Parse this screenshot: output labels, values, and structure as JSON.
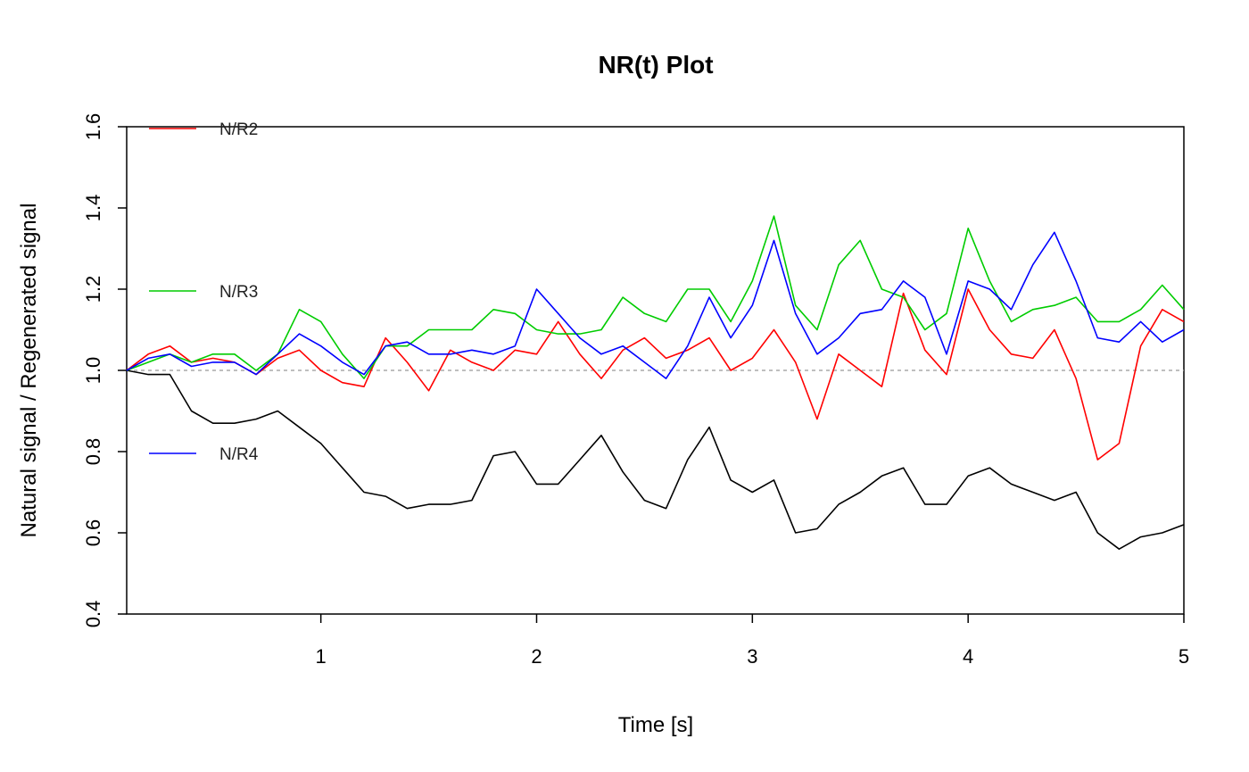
{
  "chart_data": {
    "type": "line",
    "title": "NR(t) Plot",
    "xlabel": "Time [s]",
    "ylabel": "Natural signal / Regenerated signal",
    "xlim": [
      0.1,
      5.0
    ],
    "ylim": [
      0.4,
      1.6
    ],
    "xticks": [
      "1",
      "2",
      "3",
      "4",
      "5"
    ],
    "yticks": [
      "0.4",
      "0.6",
      "0.8",
      "1.0",
      "1.2",
      "1.4",
      "1.6"
    ],
    "reference_line": 1.0,
    "legend_placement": "left, inside plot",
    "x": [
      0.1,
      0.2,
      0.3,
      0.4,
      0.5,
      0.6,
      0.7,
      0.8,
      0.9,
      1.0,
      1.1,
      1.2,
      1.3,
      1.4,
      1.5,
      1.6,
      1.7,
      1.8,
      1.9,
      2.0,
      2.1,
      2.2,
      2.3,
      2.4,
      2.5,
      2.6,
      2.7,
      2.8,
      2.9,
      3.0,
      3.1,
      3.2,
      3.3,
      3.4,
      3.5,
      3.6,
      3.7,
      3.8,
      3.9,
      4.0,
      4.1,
      4.2,
      4.3,
      4.4,
      4.5,
      4.6,
      4.7,
      4.8,
      4.9,
      5.0
    ],
    "series": [
      {
        "name": "",
        "color": "#000000",
        "values": [
          1.0,
          0.99,
          0.99,
          0.9,
          0.87,
          0.87,
          0.88,
          0.9,
          0.86,
          0.82,
          0.76,
          0.7,
          0.69,
          0.66,
          0.67,
          0.67,
          0.68,
          0.79,
          0.8,
          0.72,
          0.72,
          0.78,
          0.84,
          0.75,
          0.68,
          0.66,
          0.78,
          0.86,
          0.73,
          0.7,
          0.73,
          0.6,
          0.61,
          0.67,
          0.7,
          0.74,
          0.76,
          0.67,
          0.67,
          0.74,
          0.76,
          0.72,
          0.7,
          0.68,
          0.7,
          0.6,
          0.56,
          0.59,
          0.6,
          0.62
        ]
      },
      {
        "name": "N/R2",
        "color": "#ff0000",
        "values": [
          1.0,
          1.04,
          1.06,
          1.02,
          1.03,
          1.02,
          0.99,
          1.03,
          1.05,
          1.0,
          0.97,
          0.96,
          1.08,
          1.02,
          0.95,
          1.05,
          1.02,
          1.0,
          1.05,
          1.04,
          1.12,
          1.04,
          0.98,
          1.05,
          1.08,
          1.03,
          1.05,
          1.08,
          1.0,
          1.03,
          1.1,
          1.02,
          0.88,
          1.04,
          1.0,
          0.96,
          1.19,
          1.05,
          0.99,
          1.2,
          1.1,
          1.04,
          1.03,
          1.1,
          0.98,
          0.78,
          0.82,
          1.06,
          1.15,
          1.12
        ]
      },
      {
        "name": "N/R3",
        "color": "#00cc00",
        "values": [
          1.0,
          1.02,
          1.04,
          1.02,
          1.04,
          1.04,
          1.0,
          1.04,
          1.15,
          1.12,
          1.04,
          0.98,
          1.06,
          1.06,
          1.1,
          1.1,
          1.1,
          1.15,
          1.14,
          1.1,
          1.09,
          1.09,
          1.1,
          1.18,
          1.14,
          1.12,
          1.2,
          1.2,
          1.12,
          1.22,
          1.38,
          1.16,
          1.1,
          1.26,
          1.32,
          1.2,
          1.18,
          1.1,
          1.14,
          1.35,
          1.22,
          1.12,
          1.15,
          1.16,
          1.18,
          1.12,
          1.12,
          1.15,
          1.21,
          1.15
        ]
      },
      {
        "name": "N/R4",
        "color": "#0000ff",
        "values": [
          1.0,
          1.03,
          1.04,
          1.01,
          1.02,
          1.02,
          0.99,
          1.04,
          1.09,
          1.06,
          1.02,
          0.99,
          1.06,
          1.07,
          1.04,
          1.04,
          1.05,
          1.04,
          1.06,
          1.2,
          1.14,
          1.08,
          1.04,
          1.06,
          1.02,
          0.98,
          1.06,
          1.18,
          1.08,
          1.16,
          1.32,
          1.14,
          1.04,
          1.08,
          1.14,
          1.15,
          1.22,
          1.18,
          1.04,
          1.22,
          1.2,
          1.15,
          1.26,
          1.34,
          1.22,
          1.08,
          1.07,
          1.12,
          1.07,
          1.1
        ]
      }
    ]
  }
}
